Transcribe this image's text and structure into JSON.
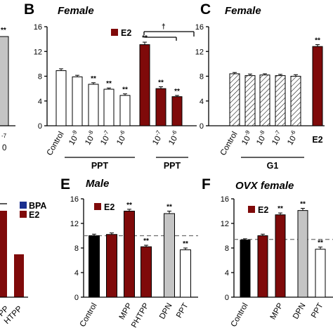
{
  "colors": {
    "dark_red": "#7f0a0a",
    "white": "#ffffff",
    "black": "#000000",
    "gray": "#c4c4c4",
    "bpa_blue": "#1a2f8f",
    "dashed_line": "#6e6e6e"
  },
  "panels": {
    "A_partial": {
      "stars": [
        "**"
      ],
      "tick_labels": [
        "-7",
        "0"
      ]
    },
    "B": {
      "letter": "B",
      "title": "Female",
      "legend": [
        "E2"
      ],
      "group_labels": [
        "PPT",
        "PPT"
      ],
      "significance_symbol": "†"
    },
    "C": {
      "letter": "C",
      "title": "Female",
      "group_labels": [
        "G1"
      ]
    },
    "D_partial": {
      "legend": [
        "BPA",
        "E2"
      ],
      "category_fragments": [
        "PP",
        "HTPP"
      ]
    },
    "E": {
      "letter": "E",
      "title": "Male",
      "legend": [
        "E2"
      ]
    },
    "F": {
      "letter": "F",
      "title": "OVX female",
      "legend": [
        "E2"
      ]
    }
  },
  "chart_data": [
    {
      "panel": "B",
      "type": "bar",
      "title": "Female",
      "ylim": [
        0,
        16
      ],
      "yticks": [
        0,
        4,
        8,
        12,
        16
      ],
      "legend": [
        "E2"
      ],
      "legend_placement": "top-left",
      "categories": [
        {
          "label": "Control"
        },
        {
          "label": "10",
          "exp": "-9"
        },
        {
          "label": "10",
          "exp": "-8"
        },
        {
          "label": "10",
          "exp": "-7"
        },
        {
          "label": "10",
          "exp": "-6"
        },
        {
          "label": ""
        },
        {
          "label": "10",
          "exp": "-7"
        },
        {
          "label": "10",
          "exp": "-6"
        }
      ],
      "values": [
        8.9,
        7.9,
        6.7,
        5.9,
        4.9,
        13.1,
        6.0,
        4.7
      ],
      "errors": [
        0.3,
        0.25,
        0.25,
        0.2,
        0.25,
        0.4,
        0.3,
        0.2
      ],
      "fills": [
        "white",
        "white",
        "white",
        "white",
        "white",
        "dark_red",
        "dark_red",
        "dark_red"
      ],
      "stars": [
        "",
        "",
        "**",
        "**",
        "**",
        "**",
        "**",
        "**"
      ],
      "group_labels": [
        "PPT",
        "PPT"
      ]
    },
    {
      "panel": "C",
      "type": "bar",
      "title": "Female",
      "ylim": [
        0,
        16
      ],
      "yticks": [
        0,
        4,
        8,
        12,
        16
      ],
      "categories": [
        {
          "label": "Control"
        },
        {
          "label": "10",
          "exp": "-9"
        },
        {
          "label": "10",
          "exp": "-8"
        },
        {
          "label": "10",
          "exp": "-7"
        },
        {
          "label": "10",
          "exp": "-6"
        },
        {
          "label": "E2"
        }
      ],
      "values": [
        8.4,
        8.1,
        8.2,
        8.1,
        8.0,
        12.8
      ],
      "errors": [
        0.2,
        0.25,
        0.2,
        0.2,
        0.25,
        0.3
      ],
      "fills": [
        "hatch",
        "hatch",
        "hatch",
        "hatch",
        "hatch",
        "dark_red"
      ],
      "stars": [
        "",
        "",
        "",
        "",
        "",
        "**"
      ],
      "group_labels": [
        "G1"
      ]
    },
    {
      "panel": "E",
      "type": "bar",
      "title": "Male",
      "ylim": [
        0,
        16
      ],
      "yticks": [
        0,
        4,
        8,
        12,
        16
      ],
      "legend": [
        "E2"
      ],
      "legend_placement": "top-left",
      "reference_line": 10.0,
      "categories": [
        {
          "label": "Control"
        },
        {
          "label": ""
        },
        {
          "label": "MPP"
        },
        {
          "label": "PHTPP"
        },
        {
          "label": "DPN"
        },
        {
          "label": "PPT"
        }
      ],
      "values": [
        10.0,
        10.2,
        14.0,
        8.2,
        13.6,
        7.7
      ],
      "errors": [
        0.25,
        0.25,
        0.3,
        0.25,
        0.4,
        0.3
      ],
      "fills": [
        "black",
        "dark_red",
        "dark_red",
        "dark_red",
        "gray",
        "white"
      ],
      "stars": [
        "",
        "",
        "**",
        "**",
        "**",
        "**"
      ]
    },
    {
      "panel": "F",
      "type": "bar",
      "title": "OVX female",
      "ylim": [
        0,
        16
      ],
      "yticks": [
        0,
        4,
        8,
        12,
        16
      ],
      "legend": [
        "E2"
      ],
      "legend_placement": "top-left",
      "reference_line": 9.4,
      "categories": [
        {
          "label": "Control"
        },
        {
          "label": ""
        },
        {
          "label": "MPP"
        },
        {
          "label": "DPN"
        },
        {
          "label": "PPT"
        }
      ],
      "values": [
        9.3,
        10.0,
        13.4,
        14.1,
        7.8
      ],
      "errors": [
        0.2,
        0.25,
        0.3,
        0.35,
        0.35
      ],
      "fills": [
        "black",
        "dark_red",
        "dark_red",
        "gray",
        "white"
      ],
      "stars": [
        "",
        "",
        "**",
        "**",
        "**"
      ]
    }
  ]
}
